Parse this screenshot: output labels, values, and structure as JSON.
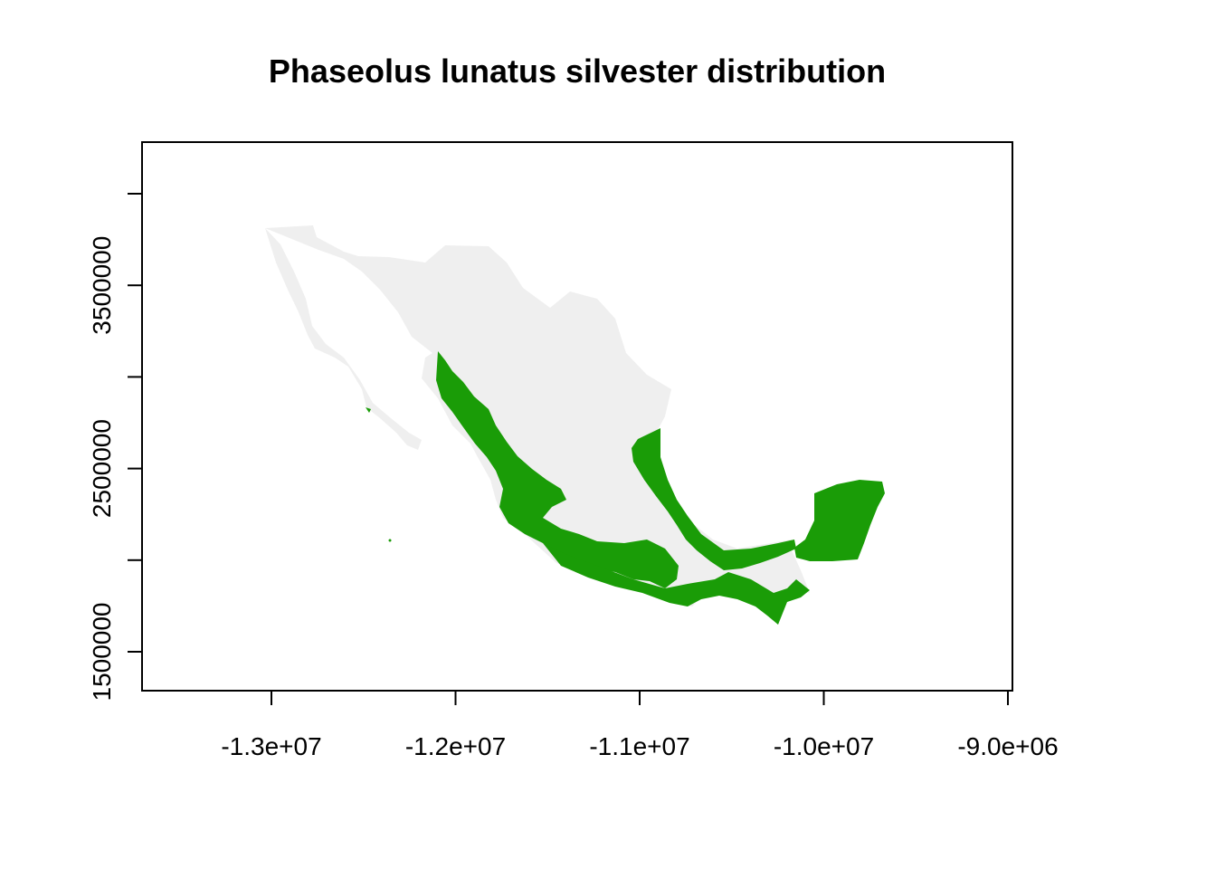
{
  "title": "Phaseolus lunatus silvester distribution",
  "x_axis": {
    "ticks": [
      {
        "value": -13000000,
        "label": "-1.3e+07"
      },
      {
        "value": -12000000,
        "label": "-1.2e+07"
      },
      {
        "value": -11000000,
        "label": "-1.1e+07"
      },
      {
        "value": -10000000,
        "label": "-1.0e+07"
      },
      {
        "value": -9000000,
        "label": "-9.0e+06"
      }
    ]
  },
  "y_axis": {
    "ticks": [
      {
        "value": 1500000,
        "label": "1500000"
      },
      {
        "value": 2000000,
        "label": ""
      },
      {
        "value": 2500000,
        "label": "2500000"
      },
      {
        "value": 3000000,
        "label": ""
      },
      {
        "value": 3500000,
        "label": "3500000"
      },
      {
        "value": 4000000,
        "label": ""
      }
    ]
  },
  "colors": {
    "land": "#efefef",
    "presence": "#1a9c07",
    "axis": "#000000"
  },
  "map": {
    "region": "Mexico",
    "layers": [
      "land",
      "presence"
    ]
  }
}
